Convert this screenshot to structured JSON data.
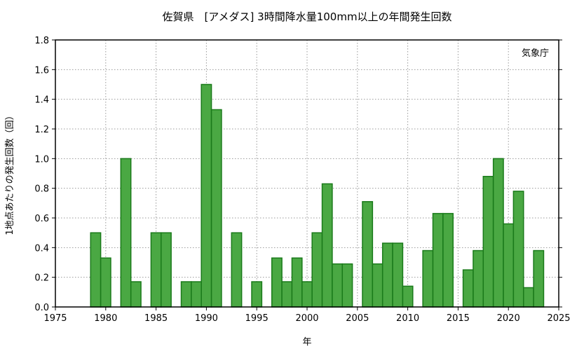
{
  "chart_data": {
    "type": "bar",
    "title": "佐賀県　[アメダス] 3時間降水量100mm以上の年間発生回数",
    "xlabel": "年",
    "ylabel": "1地点あたりの発生回数（回）",
    "note": "気象庁",
    "xlim": [
      1975,
      2025
    ],
    "ylim": [
      0,
      1.8
    ],
    "x_ticks": [
      "1975",
      "1980",
      "1985",
      "1990",
      "1995",
      "2000",
      "2005",
      "2010",
      "2015",
      "2020",
      "2025"
    ],
    "y_ticks": [
      "0.0",
      "0.2",
      "0.4",
      "0.6",
      "0.8",
      "1.0",
      "1.2",
      "1.4",
      "1.6",
      "1.8"
    ],
    "grid": true,
    "bar_color": "#4aa843",
    "bar_edge_color": "#1a7a1a",
    "x": [
      1979,
      1980,
      1981,
      1982,
      1983,
      1984,
      1985,
      1986,
      1987,
      1988,
      1989,
      1990,
      1991,
      1992,
      1993,
      1994,
      1995,
      1996,
      1997,
      1998,
      1999,
      2000,
      2001,
      2002,
      2003,
      2004,
      2005,
      2006,
      2007,
      2008,
      2009,
      2010,
      2011,
      2012,
      2013,
      2014,
      2015,
      2016,
      2017,
      2018,
      2019,
      2020,
      2021,
      2022,
      2023
    ],
    "values": [
      0.5,
      0.33,
      0.0,
      1.0,
      0.17,
      0.0,
      0.5,
      0.5,
      0.0,
      0.17,
      0.17,
      1.5,
      1.33,
      0.0,
      0.5,
      0.0,
      0.17,
      0.0,
      0.33,
      0.17,
      0.33,
      0.17,
      0.5,
      0.83,
      0.29,
      0.29,
      0.0,
      0.71,
      0.29,
      0.43,
      0.43,
      0.14,
      0.0,
      0.38,
      0.63,
      0.63,
      0.0,
      0.25,
      0.38,
      0.88,
      1.0,
      0.56,
      0.78,
      0.13,
      0.38
    ]
  }
}
